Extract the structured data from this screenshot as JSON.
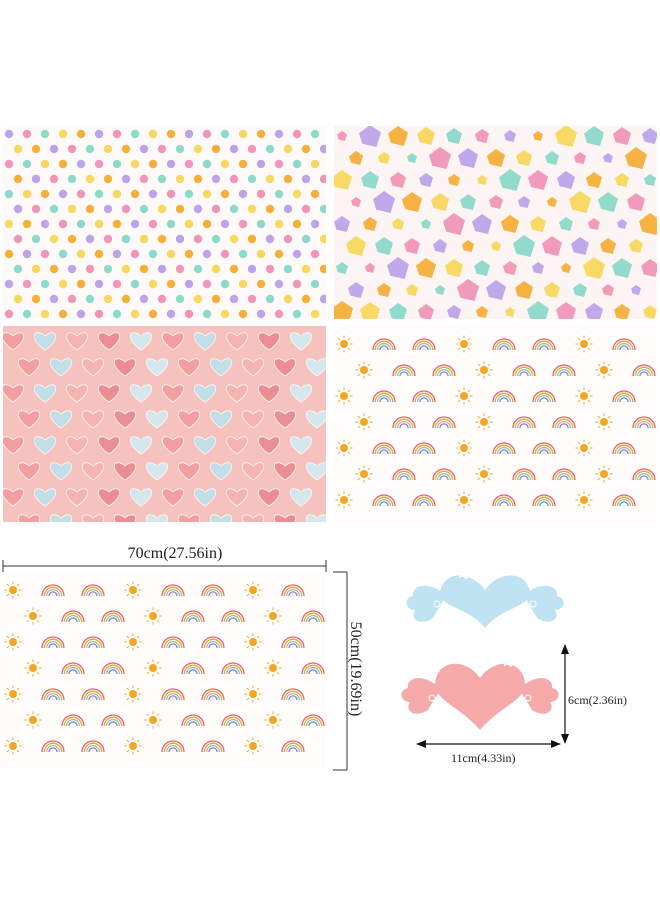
{
  "product": {
    "panels": [
      {
        "pattern": "polka dots"
      },
      {
        "pattern": "confetti shapes"
      },
      {
        "pattern": "iridescent hearts"
      },
      {
        "pattern": "rainbows and suns"
      }
    ],
    "sheet": {
      "width_label": "70cm(27.56in)",
      "height_label": "50cm(19.69in)"
    },
    "gift_tags": {
      "width_label": "11cm(4.33in)",
      "height_label": "6cm(2.36in)",
      "colors": [
        "#bfe3f2",
        "#f6a9a9"
      ]
    }
  },
  "colors": {
    "pink": "#f08ab2",
    "orange": "#f5a623",
    "teal": "#7fd6c4",
    "purple": "#b69ae8",
    "yellow": "#f7d44c"
  }
}
